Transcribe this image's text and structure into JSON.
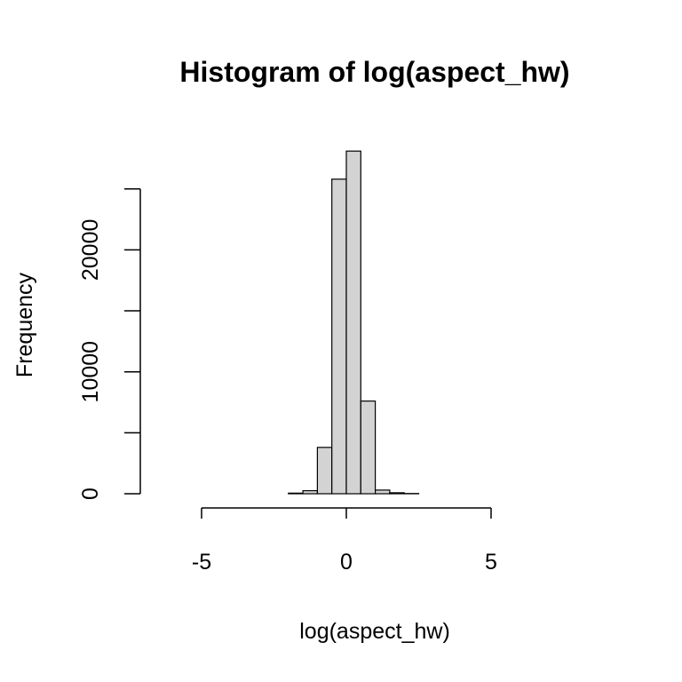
{
  "chart_data": {
    "type": "bar",
    "title": "Histogram of log(aspect_hw)",
    "xlabel": "log(aspect_hw)",
    "ylabel": "Frequency",
    "xlim": [
      -6.5,
      8.5
    ],
    "ylim": [
      0,
      27000
    ],
    "xticks": [
      -5,
      0,
      5
    ],
    "xtick_labels": [
      "-5",
      "0",
      "5"
    ],
    "yticks": [
      0,
      5000,
      10000,
      15000,
      20000,
      25000
    ],
    "ytick_labels": [
      "0",
      "",
      "10000",
      "",
      "20000",
      ""
    ],
    "bin_width": 0.5,
    "bins": [
      {
        "x0": -6.5,
        "x1": -6.0,
        "count": 0
      },
      {
        "x0": -6.0,
        "x1": -5.5,
        "count": 0
      },
      {
        "x0": -5.5,
        "x1": -5.0,
        "count": 0
      },
      {
        "x0": -5.0,
        "x1": -4.5,
        "count": 0
      },
      {
        "x0": -4.5,
        "x1": -4.0,
        "count": 0
      },
      {
        "x0": -4.0,
        "x1": -3.5,
        "count": 0
      },
      {
        "x0": -3.5,
        "x1": -3.0,
        "count": 0
      },
      {
        "x0": -3.0,
        "x1": -2.5,
        "count": 0
      },
      {
        "x0": -2.5,
        "x1": -2.0,
        "count": 0
      },
      {
        "x0": -2.0,
        "x1": -1.5,
        "count": 50
      },
      {
        "x0": -1.5,
        "x1": -1.0,
        "count": 250
      },
      {
        "x0": -1.0,
        "x1": -0.5,
        "count": 3800
      },
      {
        "x0": -0.5,
        "x1": 0.0,
        "count": 25800
      },
      {
        "x0": 0.0,
        "x1": 0.5,
        "count": 28100
      },
      {
        "x0": 0.5,
        "x1": 1.0,
        "count": 7600
      },
      {
        "x0": 1.0,
        "x1": 1.5,
        "count": 300
      },
      {
        "x0": 1.5,
        "x1": 2.0,
        "count": 80
      },
      {
        "x0": 2.0,
        "x1": 2.5,
        "count": 20
      },
      {
        "x0": 2.5,
        "x1": 3.0,
        "count": 0
      },
      {
        "x0": 3.0,
        "x1": 3.5,
        "count": 0
      },
      {
        "x0": 3.5,
        "x1": 4.0,
        "count": 0
      },
      {
        "x0": 4.0,
        "x1": 4.5,
        "count": 0
      },
      {
        "x0": 4.5,
        "x1": 5.0,
        "count": 0
      },
      {
        "x0": 5.0,
        "x1": 5.5,
        "count": 0
      },
      {
        "x0": 5.5,
        "x1": 6.0,
        "count": 0
      },
      {
        "x0": 6.0,
        "x1": 6.5,
        "count": 0
      },
      {
        "x0": 6.5,
        "x1": 7.0,
        "count": 0
      },
      {
        "x0": 7.0,
        "x1": 7.5,
        "count": 0
      },
      {
        "x0": 7.5,
        "x1": 8.0,
        "count": 0
      },
      {
        "x0": 8.0,
        "x1": 8.5,
        "count": 0
      }
    ],
    "bar_fill": "#d3d3d3",
    "bar_stroke": "#000000",
    "grid": false,
    "legend": "none"
  }
}
